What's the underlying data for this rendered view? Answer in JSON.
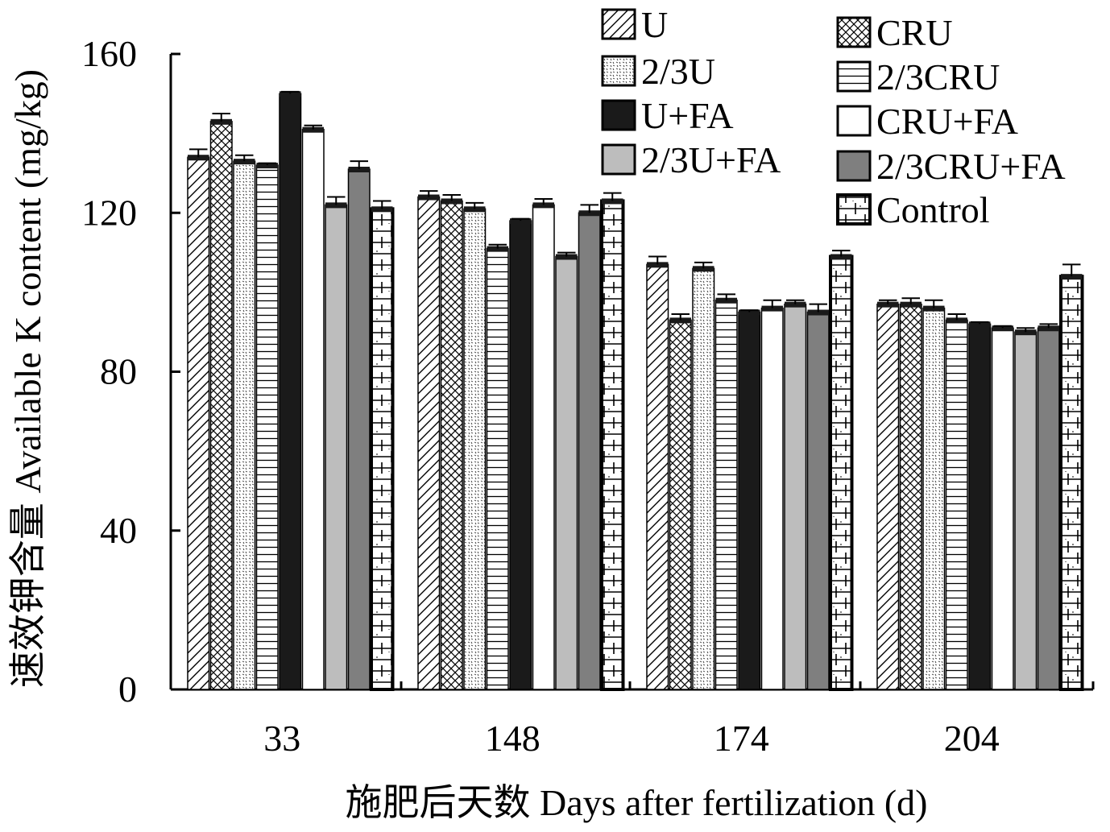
{
  "chart_data": {
    "type": "bar",
    "title": "",
    "xlabel": "施肥后天数 Days after fertilization (d)",
    "ylabel": "速效钾含量 Available K content (mg/kg)",
    "ylim": [
      0,
      160
    ],
    "yticks": [
      0,
      40,
      80,
      120,
      160
    ],
    "categories": [
      "33",
      "148",
      "174",
      "204"
    ],
    "grid": false,
    "legend_position": "top-right",
    "series": [
      {
        "name": "U",
        "values": [
          134,
          124,
          107,
          97
        ],
        "errors": [
          2,
          1.5,
          2,
          1
        ],
        "pattern": "diag",
        "color": "#ffffff"
      },
      {
        "name": "CRU",
        "values": [
          143,
          123,
          93,
          97
        ],
        "errors": [
          2,
          1.5,
          1.5,
          1.5
        ],
        "pattern": "cross",
        "color": "#ffffff"
      },
      {
        "name": "2/3U",
        "values": [
          133,
          121,
          106,
          96
        ],
        "errors": [
          1.5,
          1.5,
          1.5,
          2
        ],
        "pattern": "dots",
        "color": "#ffffff"
      },
      {
        "name": "2/3CRU",
        "values": [
          132,
          111,
          98,
          93
        ],
        "errors": [
          0.5,
          1,
          1.5,
          1.5
        ],
        "pattern": "hlines",
        "color": "#ffffff"
      },
      {
        "name": "U+FA",
        "values": [
          150,
          118,
          95,
          92
        ],
        "errors": [
          0.5,
          0.5,
          0.5,
          0.5
        ],
        "pattern": "solid",
        "color": "#1a1a1a"
      },
      {
        "name": "CRU+FA",
        "values": [
          141,
          122,
          96,
          91
        ],
        "errors": [
          1,
          1.5,
          2,
          0.5
        ],
        "pattern": "solid",
        "color": "#ffffff"
      },
      {
        "name": "2/3U+FA",
        "values": [
          122,
          109,
          97,
          90
        ],
        "errors": [
          2,
          1,
          1,
          1
        ],
        "pattern": "solid",
        "color": "#bdbdbd"
      },
      {
        "name": "2/3CRU+FA",
        "values": [
          131,
          120,
          95,
          91
        ],
        "errors": [
          2,
          2,
          2,
          1
        ],
        "pattern": "solid",
        "color": "#7f7f7f"
      },
      {
        "name": "Control",
        "values": [
          121,
          123,
          109,
          104
        ],
        "errors": [
          2,
          2,
          1.5,
          3
        ],
        "pattern": "brick",
        "color": "#ffffff"
      }
    ]
  }
}
